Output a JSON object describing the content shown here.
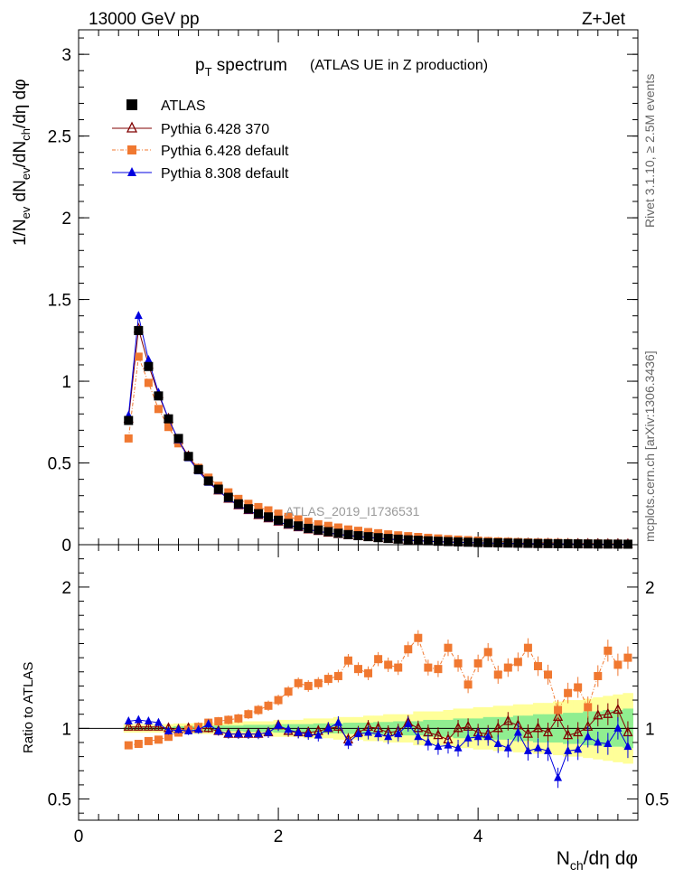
{
  "header": {
    "left": "13000 GeV pp",
    "right": "Z+Jet",
    "side_rivet": "Rivet 3.1.10, ≥ 2.5M events",
    "side_mcplots": "mcplots.cern.ch [arXiv:1306.3436]",
    "watermark": "ATLAS_2019_I1736531"
  },
  "chart_data": [
    {
      "type": "scatter",
      "panel": "main",
      "title": "p_T spectrum",
      "title_main": "p",
      "title_sub": "T",
      "title_rest": " spectrum",
      "subtitle": "(ATLAS UE in Z production)",
      "ylabel": "1/N_ev dN_ev/dN_ch/dη dφ",
      "ylabel_parts": {
        "a": "1/N",
        "a_sub": "ev",
        "b": " dN",
        "b_sub": "ev",
        "c": "/dN",
        "c_sub": "ch",
        "d": "/dη dφ"
      },
      "xlim": [
        0,
        5.6
      ],
      "ylim": [
        0,
        3.15
      ],
      "y_ticks": [
        0,
        0.5,
        1,
        1.5,
        2,
        2.5,
        3
      ],
      "y_tick_labels": [
        "0",
        "0.5",
        "1",
        "1.5",
        "2",
        "2.5",
        "3"
      ],
      "legend_position": "top-left",
      "x": [
        0.5,
        0.6,
        0.7,
        0.8,
        0.9,
        1.0,
        1.1,
        1.2,
        1.3,
        1.4,
        1.5,
        1.6,
        1.7,
        1.8,
        1.9,
        2.0,
        2.1,
        2.2,
        2.3,
        2.4,
        2.5,
        2.6,
        2.7,
        2.8,
        2.9,
        3.0,
        3.1,
        3.2,
        3.3,
        3.4,
        3.5,
        3.6,
        3.7,
        3.8,
        3.9,
        4.0,
        4.1,
        4.2,
        4.3,
        4.4,
        4.5,
        4.6,
        4.7,
        4.8,
        4.9,
        5.0,
        5.1,
        5.2,
        5.3,
        5.4,
        5.5
      ],
      "series": [
        {
          "name": "ATLAS",
          "color": "#000000",
          "marker": "square",
          "values": [
            0.76,
            1.31,
            1.09,
            0.91,
            0.77,
            0.65,
            0.54,
            0.46,
            0.39,
            0.34,
            0.29,
            0.25,
            0.22,
            0.19,
            0.17,
            0.15,
            0.13,
            0.115,
            0.1,
            0.09,
            0.08,
            0.07,
            0.062,
            0.055,
            0.049,
            0.043,
            0.038,
            0.034,
            0.03,
            0.027,
            0.024,
            0.021,
            0.019,
            0.017,
            0.015,
            0.013,
            0.012,
            0.011,
            0.01,
            0.009,
            0.008,
            0.007,
            0.0065,
            0.006,
            0.0055,
            0.005,
            0.0045,
            0.004,
            0.0037,
            0.0034,
            0.003
          ]
        },
        {
          "name": "Pythia 6.428 370",
          "color": "#800000",
          "marker": "open-triangle",
          "values": [
            0.77,
            1.32,
            1.1,
            0.92,
            0.77,
            0.64,
            0.54,
            0.46,
            0.39,
            0.33,
            0.28,
            0.24,
            0.21,
            0.18,
            0.16,
            0.14,
            0.12,
            0.105,
            0.092,
            0.082,
            0.072,
            0.064,
            0.057,
            0.051,
            0.045,
            0.04,
            0.035,
            0.031,
            0.028,
            0.025,
            0.022,
            0.019,
            0.017,
            0.015,
            0.013,
            0.012,
            0.011,
            0.01,
            0.009,
            0.008,
            0.007,
            0.006,
            0.0055,
            0.005,
            0.0045,
            0.004,
            0.0036,
            0.0032,
            0.003,
            0.0027,
            0.0024
          ]
        },
        {
          "name": "Pythia 6.428 default",
          "color": "#f07830",
          "marker": "square",
          "values": [
            0.65,
            1.15,
            0.99,
            0.83,
            0.72,
            0.62,
            0.54,
            0.47,
            0.41,
            0.36,
            0.32,
            0.28,
            0.25,
            0.23,
            0.21,
            0.19,
            0.17,
            0.155,
            0.14,
            0.125,
            0.115,
            0.105,
            0.093,
            0.085,
            0.077,
            0.07,
            0.063,
            0.057,
            0.052,
            0.047,
            0.042,
            0.038,
            0.034,
            0.031,
            0.028,
            0.025,
            0.022,
            0.02,
            0.018,
            0.016,
            0.014,
            0.013,
            0.012,
            0.011,
            0.01,
            0.009,
            0.008,
            0.0075,
            0.007,
            0.0065,
            0.006
          ]
        },
        {
          "name": "Pythia 8.308 default",
          "color": "#0000e0",
          "marker": "triangle",
          "values": [
            0.79,
            1.4,
            1.13,
            0.93,
            0.77,
            0.64,
            0.53,
            0.45,
            0.38,
            0.33,
            0.28,
            0.24,
            0.21,
            0.18,
            0.16,
            0.14,
            0.12,
            0.105,
            0.092,
            0.082,
            0.072,
            0.063,
            0.056,
            0.05,
            0.044,
            0.039,
            0.034,
            0.03,
            0.027,
            0.024,
            0.021,
            0.018,
            0.016,
            0.014,
            0.013,
            0.011,
            0.01,
            0.009,
            0.008,
            0.0075,
            0.006,
            0.006,
            0.0055,
            0.005,
            0.0045,
            0.004,
            0.0037,
            0.0033,
            0.003,
            0.0028,
            0.0025
          ]
        }
      ]
    },
    {
      "type": "scatter",
      "panel": "ratio",
      "ylabel": "Ratio to ATLAS",
      "xlabel": "N_ch/dη dφ",
      "xlabel_parts": {
        "a": "N",
        "a_sub": "ch",
        "b": "/dη dφ"
      },
      "xlim": [
        0,
        5.6
      ],
      "ylim": [
        0.35,
        2.3
      ],
      "x_ticks": [
        0,
        2,
        4
      ],
      "x_tick_labels": [
        "0",
        "2",
        "4"
      ],
      "y_ticks": [
        0.5,
        1,
        2
      ],
      "y_tick_labels": [
        "0.5",
        "1",
        "2"
      ],
      "band_colors": {
        "stat": "#90ee90",
        "total": "#ffff99"
      },
      "x": [
        0.5,
        0.6,
        0.7,
        0.8,
        0.9,
        1.0,
        1.1,
        1.2,
        1.3,
        1.4,
        1.5,
        1.6,
        1.7,
        1.8,
        1.9,
        2.0,
        2.1,
        2.2,
        2.3,
        2.4,
        2.5,
        2.6,
        2.7,
        2.8,
        2.9,
        3.0,
        3.1,
        3.2,
        3.3,
        3.4,
        3.5,
        3.6,
        3.7,
        3.8,
        3.9,
        4.0,
        4.1,
        4.2,
        4.3,
        4.4,
        4.5,
        4.6,
        4.7,
        4.8,
        4.9,
        5.0,
        5.1,
        5.2,
        5.3,
        5.4,
        5.5
      ],
      "band_stat": [
        0.01,
        0.01,
        0.01,
        0.01,
        0.01,
        0.015,
        0.015,
        0.015,
        0.02,
        0.02,
        0.02,
        0.02,
        0.025,
        0.025,
        0.025,
        0.03,
        0.03,
        0.03,
        0.03,
        0.035,
        0.035,
        0.035,
        0.04,
        0.04,
        0.04,
        0.045,
        0.045,
        0.05,
        0.05,
        0.05,
        0.06,
        0.06,
        0.06,
        0.07,
        0.07,
        0.07,
        0.08,
        0.08,
        0.08,
        0.09,
        0.09,
        0.1,
        0.1,
        0.1,
        0.11,
        0.11,
        0.12,
        0.12,
        0.13,
        0.13,
        0.14
      ],
      "band_total": [
        0.03,
        0.03,
        0.03,
        0.03,
        0.03,
        0.035,
        0.035,
        0.04,
        0.04,
        0.04,
        0.045,
        0.045,
        0.05,
        0.05,
        0.05,
        0.06,
        0.06,
        0.06,
        0.07,
        0.07,
        0.07,
        0.08,
        0.08,
        0.08,
        0.09,
        0.09,
        0.1,
        0.1,
        0.1,
        0.12,
        0.12,
        0.12,
        0.13,
        0.14,
        0.14,
        0.15,
        0.15,
        0.16,
        0.16,
        0.17,
        0.17,
        0.18,
        0.18,
        0.19,
        0.2,
        0.2,
        0.21,
        0.22,
        0.23,
        0.24,
        0.25
      ],
      "series": [
        {
          "name": "Pythia 6.428 370",
          "color": "#800000",
          "marker": "open-triangle",
          "values": [
            1.01,
            1.01,
            1.01,
            1.01,
            1.0,
            0.99,
            1.0,
            1.0,
            1.0,
            0.98,
            0.96,
            0.96,
            0.96,
            0.96,
            0.97,
            1.02,
            0.98,
            0.97,
            0.97,
            0.98,
            1.0,
            1.01,
            0.92,
            0.97,
            1.01,
            1.0,
            0.97,
            0.98,
            1.04,
            1.0,
            0.97,
            0.95,
            0.92,
            1.0,
            1.01,
            0.97,
            0.96,
            1.0,
            1.05,
            1.02,
            0.96,
            1.0,
            0.97,
            1.08,
            0.95,
            0.97,
            1.01,
            1.09,
            1.1,
            1.13,
            0.97
          ]
        },
        {
          "name": "Pythia 6.428 default",
          "color": "#f07830",
          "marker": "square",
          "values": [
            0.88,
            0.89,
            0.91,
            0.92,
            0.94,
            0.97,
            0.99,
            1.01,
            1.04,
            1.05,
            1.06,
            1.07,
            1.1,
            1.13,
            1.16,
            1.2,
            1.26,
            1.32,
            1.3,
            1.32,
            1.35,
            1.37,
            1.48,
            1.42,
            1.39,
            1.49,
            1.45,
            1.43,
            1.56,
            1.64,
            1.43,
            1.42,
            1.57,
            1.46,
            1.31,
            1.46,
            1.54,
            1.38,
            1.43,
            1.47,
            1.57,
            1.44,
            1.38,
            1.13,
            1.25,
            1.29,
            1.15,
            1.37,
            1.55,
            1.45,
            1.5
          ]
        },
        {
          "name": "Pythia 8.308 default",
          "color": "#0000e0",
          "marker": "triangle",
          "values": [
            1.05,
            1.06,
            1.05,
            1.04,
            0.98,
            0.99,
            0.98,
            0.99,
            1.03,
            0.98,
            0.96,
            0.96,
            0.96,
            0.96,
            0.97,
            1.02,
            0.99,
            0.97,
            0.96,
            0.95,
            1.0,
            1.04,
            0.9,
            0.96,
            0.97,
            0.96,
            0.94,
            0.96,
            1.03,
            0.94,
            0.9,
            0.87,
            0.88,
            0.86,
            0.93,
            0.94,
            0.94,
            0.89,
            0.86,
            0.97,
            0.84,
            0.86,
            0.84,
            0.65,
            0.84,
            0.85,
            0.94,
            0.9,
            0.89,
            1.0,
            0.87
          ]
        }
      ]
    }
  ]
}
